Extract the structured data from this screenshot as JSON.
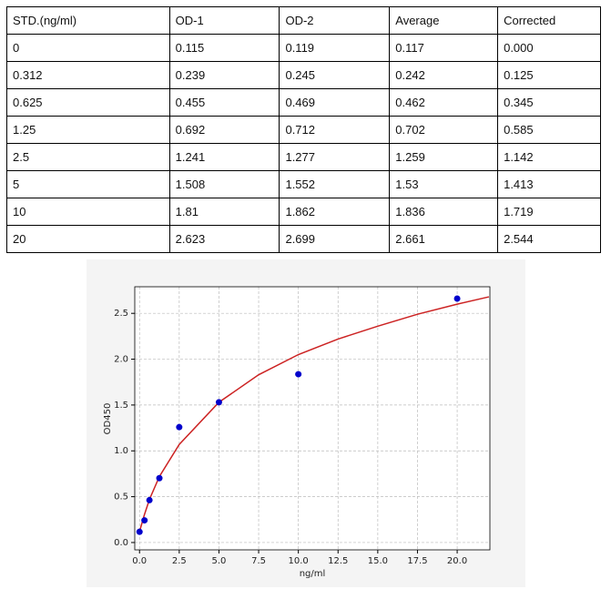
{
  "table": {
    "header": [
      "STD.(ng/ml)",
      "OD-1",
      "OD-2",
      "Average",
      "Corrected"
    ],
    "rows": [
      [
        "0",
        "0.115",
        "0.119",
        "0.117",
        "0.000"
      ],
      [
        "0.312",
        "0.239",
        "0.245",
        "0.242",
        "0.125"
      ],
      [
        "0.625",
        "0.455",
        "0.469",
        "0.462",
        "0.345"
      ],
      [
        "1.25",
        "0.692",
        "0.712",
        "0.702",
        "0.585"
      ],
      [
        "2.5",
        "1.241",
        "1.277",
        "1.259",
        "1.142"
      ],
      [
        "5",
        "1.508",
        "1.552",
        "1.53",
        "1.413"
      ],
      [
        "10",
        "1.81",
        "1.862",
        "1.836",
        "1.719"
      ],
      [
        "20",
        "2.623",
        "2.699",
        "2.661",
        "2.544"
      ]
    ]
  },
  "chart_data": {
    "type": "scatter",
    "x_label": "ng/ml",
    "y_label": "OD450",
    "series": [
      {
        "type": "line",
        "color": "#cc2222",
        "x": [
          0,
          0.3,
          0.625,
          1.25,
          2.5,
          5,
          7.5,
          10,
          12.5,
          15,
          17.5,
          20,
          22
        ],
        "values": [
          0.12,
          0.3,
          0.47,
          0.72,
          1.07,
          1.53,
          1.83,
          2.05,
          2.22,
          2.36,
          2.49,
          2.6,
          2.68
        ]
      },
      {
        "type": "scatter",
        "color": "#0000cc",
        "x": [
          0,
          0.312,
          0.625,
          1.25,
          2.5,
          5,
          10,
          20
        ],
        "values": [
          0.117,
          0.242,
          0.462,
          0.702,
          1.259,
          1.53,
          1.836,
          2.661
        ]
      }
    ],
    "xlim": [
      -0.3,
      22.06
    ],
    "ylim": [
      -0.08,
      2.79
    ],
    "xticks": [
      {
        "value": 0,
        "label": "0.0"
      },
      {
        "value": 2.5,
        "label": "2.5"
      },
      {
        "value": 5,
        "label": "5.0"
      },
      {
        "value": 7.5,
        "label": "7.5"
      },
      {
        "value": 10,
        "label": "10.0"
      },
      {
        "value": 12.5,
        "label": "12.5"
      },
      {
        "value": 15,
        "label": "15.0"
      },
      {
        "value": 17.5,
        "label": "17.5"
      },
      {
        "value": 20,
        "label": "20.0"
      }
    ],
    "yticks": [
      {
        "value": 0,
        "label": "0.0"
      },
      {
        "value": 0.5,
        "label": "0.5"
      },
      {
        "value": 1,
        "label": "1.0"
      },
      {
        "value": 1.5,
        "label": "1.5"
      },
      {
        "value": 2,
        "label": "2.0"
      },
      {
        "value": 2.5,
        "label": "2.5"
      }
    ],
    "grid": true
  }
}
